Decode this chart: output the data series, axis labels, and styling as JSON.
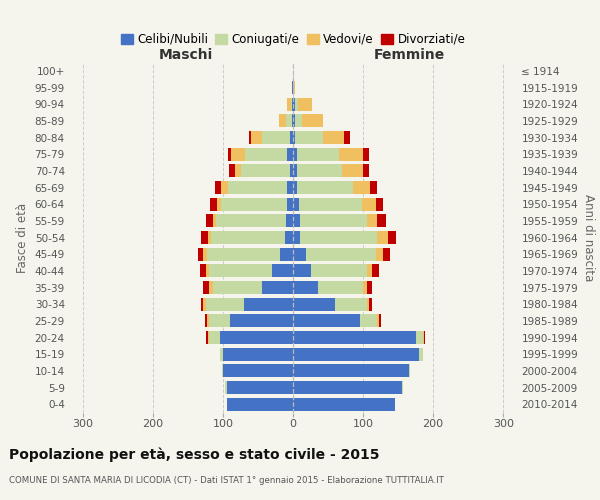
{
  "age_groups": [
    "0-4",
    "5-9",
    "10-14",
    "15-19",
    "20-24",
    "25-29",
    "30-34",
    "35-39",
    "40-44",
    "45-49",
    "50-54",
    "55-59",
    "60-64",
    "65-69",
    "70-74",
    "75-79",
    "80-84",
    "85-89",
    "90-94",
    "95-99",
    "100+"
  ],
  "birth_years": [
    "2010-2014",
    "2005-2009",
    "2000-2004",
    "1995-1999",
    "1990-1994",
    "1985-1989",
    "1980-1984",
    "1975-1979",
    "1970-1974",
    "1965-1969",
    "1960-1964",
    "1955-1959",
    "1950-1954",
    "1945-1949",
    "1940-1944",
    "1935-1939",
    "1930-1934",
    "1925-1929",
    "1920-1924",
    "1915-1919",
    "≤ 1914"
  ],
  "male_celibi": [
    95,
    95,
    100,
    100,
    105,
    90,
    70,
    45,
    30,
    18,
    12,
    10,
    8,
    8,
    5,
    8,
    5,
    2,
    1,
    1,
    0
  ],
  "male_coniugati": [
    0,
    2,
    2,
    5,
    15,
    30,
    55,
    70,
    90,
    105,
    105,
    100,
    95,
    85,
    70,
    60,
    40,
    8,
    2,
    0,
    0
  ],
  "male_vedovi": [
    0,
    0,
    0,
    0,
    2,
    3,
    3,
    5,
    5,
    5,
    5,
    5,
    5,
    10,
    8,
    20,
    15,
    10,
    5,
    0,
    0
  ],
  "male_divorziati": [
    0,
    0,
    0,
    0,
    2,
    3,
    3,
    8,
    8,
    8,
    10,
    10,
    10,
    8,
    8,
    5,
    3,
    0,
    0,
    0,
    0
  ],
  "fem_nubili": [
    145,
    155,
    165,
    180,
    175,
    95,
    60,
    35,
    25,
    18,
    10,
    10,
    8,
    5,
    5,
    5,
    3,
    3,
    2,
    0,
    0
  ],
  "fem_coniugate": [
    0,
    2,
    2,
    5,
    10,
    25,
    45,
    65,
    80,
    100,
    110,
    95,
    90,
    80,
    65,
    60,
    40,
    10,
    5,
    0,
    0
  ],
  "fem_vedove": [
    0,
    0,
    0,
    0,
    2,
    3,
    3,
    5,
    8,
    10,
    15,
    15,
    20,
    25,
    30,
    35,
    30,
    30,
    20,
    3,
    0
  ],
  "fem_divorziate": [
    0,
    0,
    0,
    0,
    2,
    3,
    5,
    8,
    10,
    10,
    12,
    12,
    10,
    10,
    8,
    8,
    8,
    0,
    0,
    0,
    0
  ],
  "color_celibi": "#4472c4",
  "color_coniugati": "#c5d9a3",
  "color_vedovi": "#f0c060",
  "color_divorziati": "#c00000",
  "xlim": 320,
  "title": "Popolazione per età, sesso e stato civile - 2015",
  "subtitle": "COMUNE DI SANTA MARIA DI LICODIA (CT) - Dati ISTAT 1° gennaio 2015 - Elaborazione TUTTITALIA.IT",
  "ylabel_left": "Fasce di età",
  "ylabel_right": "Anni di nascita",
  "label_maschi": "Maschi",
  "label_femmine": "Femmine",
  "legend_labels": [
    "Celibi/Nubili",
    "Coniugati/e",
    "Vedovi/e",
    "Divorziati/e"
  ],
  "bg_color": "#f5f5ee",
  "xticks": [
    -300,
    -200,
    -100,
    0,
    100,
    200,
    300
  ]
}
